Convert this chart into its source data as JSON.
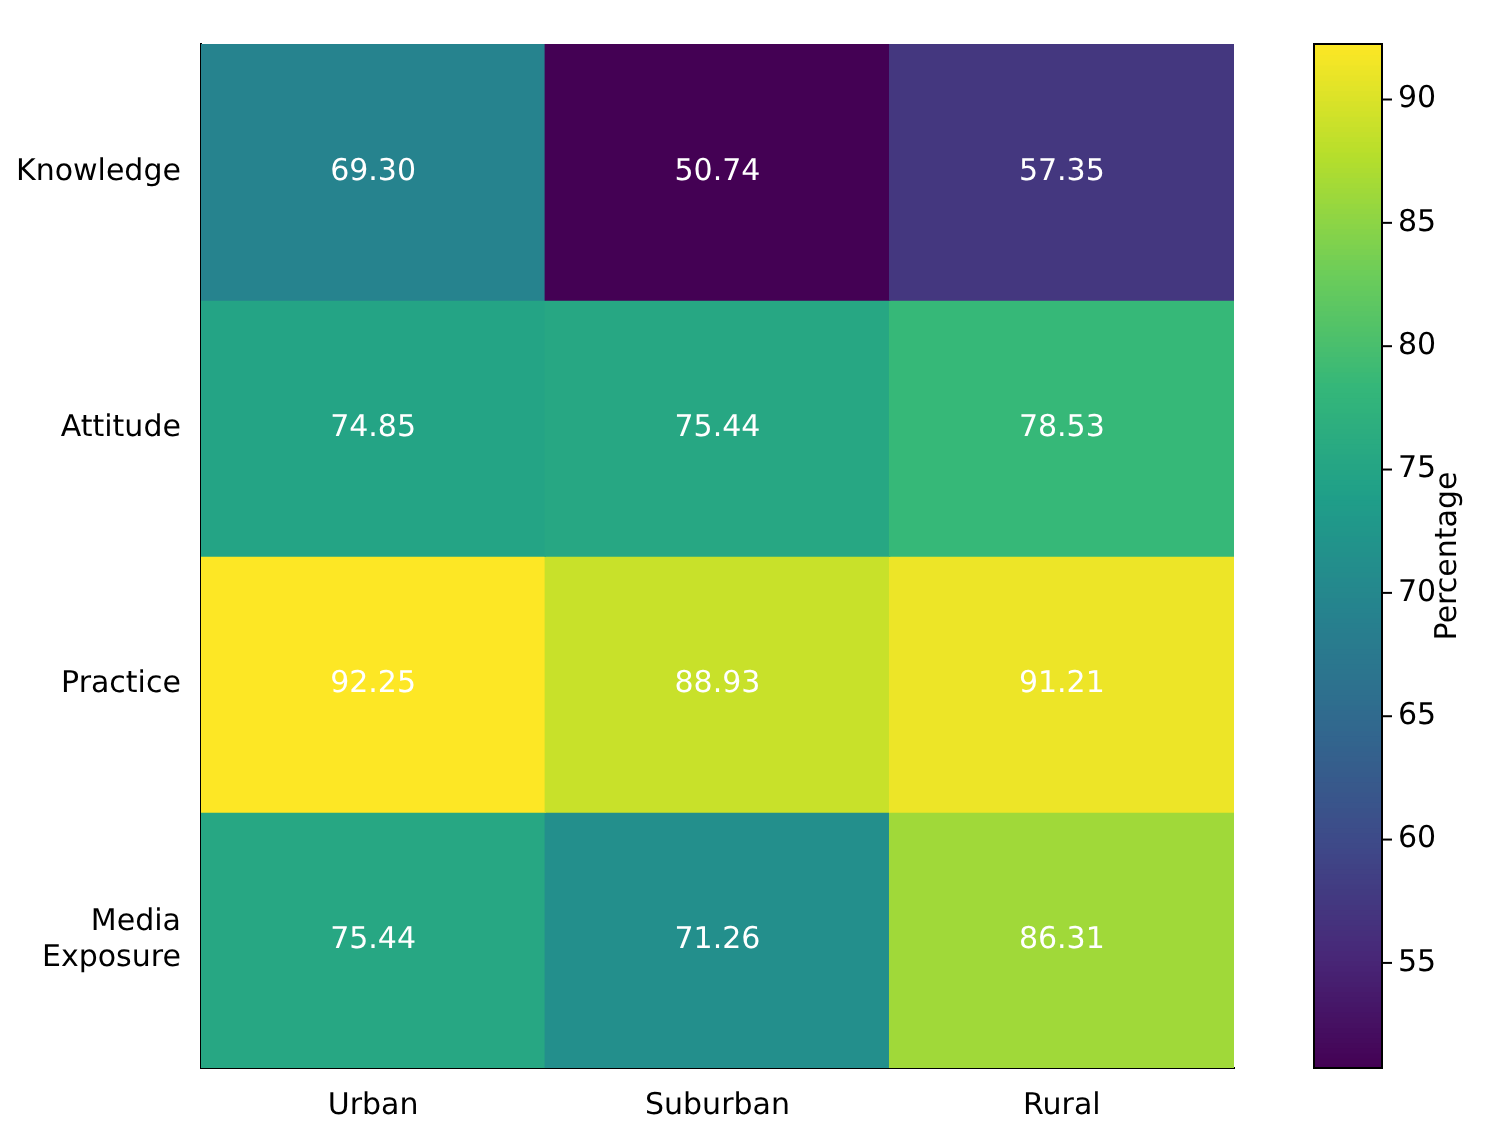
{
  "chart_data": {
    "type": "heatmap",
    "categories": [
      "Urban",
      "Suburban",
      "Rural"
    ],
    "y_categories": [
      "Knowledge",
      "Attitude",
      "Practice",
      "Media Exposure"
    ],
    "cells": [
      [
        69.3,
        50.74,
        57.35
      ],
      [
        74.85,
        75.44,
        78.53
      ],
      [
        92.25,
        88.93,
        91.21
      ],
      [
        75.44,
        71.26,
        86.31
      ]
    ],
    "cell_labels": [
      [
        "69.30",
        "50.74",
        "57.35"
      ],
      [
        "74.85",
        "75.44",
        "78.53"
      ],
      [
        "92.25",
        "88.93",
        "91.21"
      ],
      [
        "75.44",
        "71.26",
        "86.31"
      ]
    ],
    "clim": [
      50.74,
      92.25
    ],
    "cticks": [
      55,
      60,
      65,
      70,
      75,
      80,
      85,
      90
    ],
    "clabel": "Percentage",
    "grid": false
  }
}
